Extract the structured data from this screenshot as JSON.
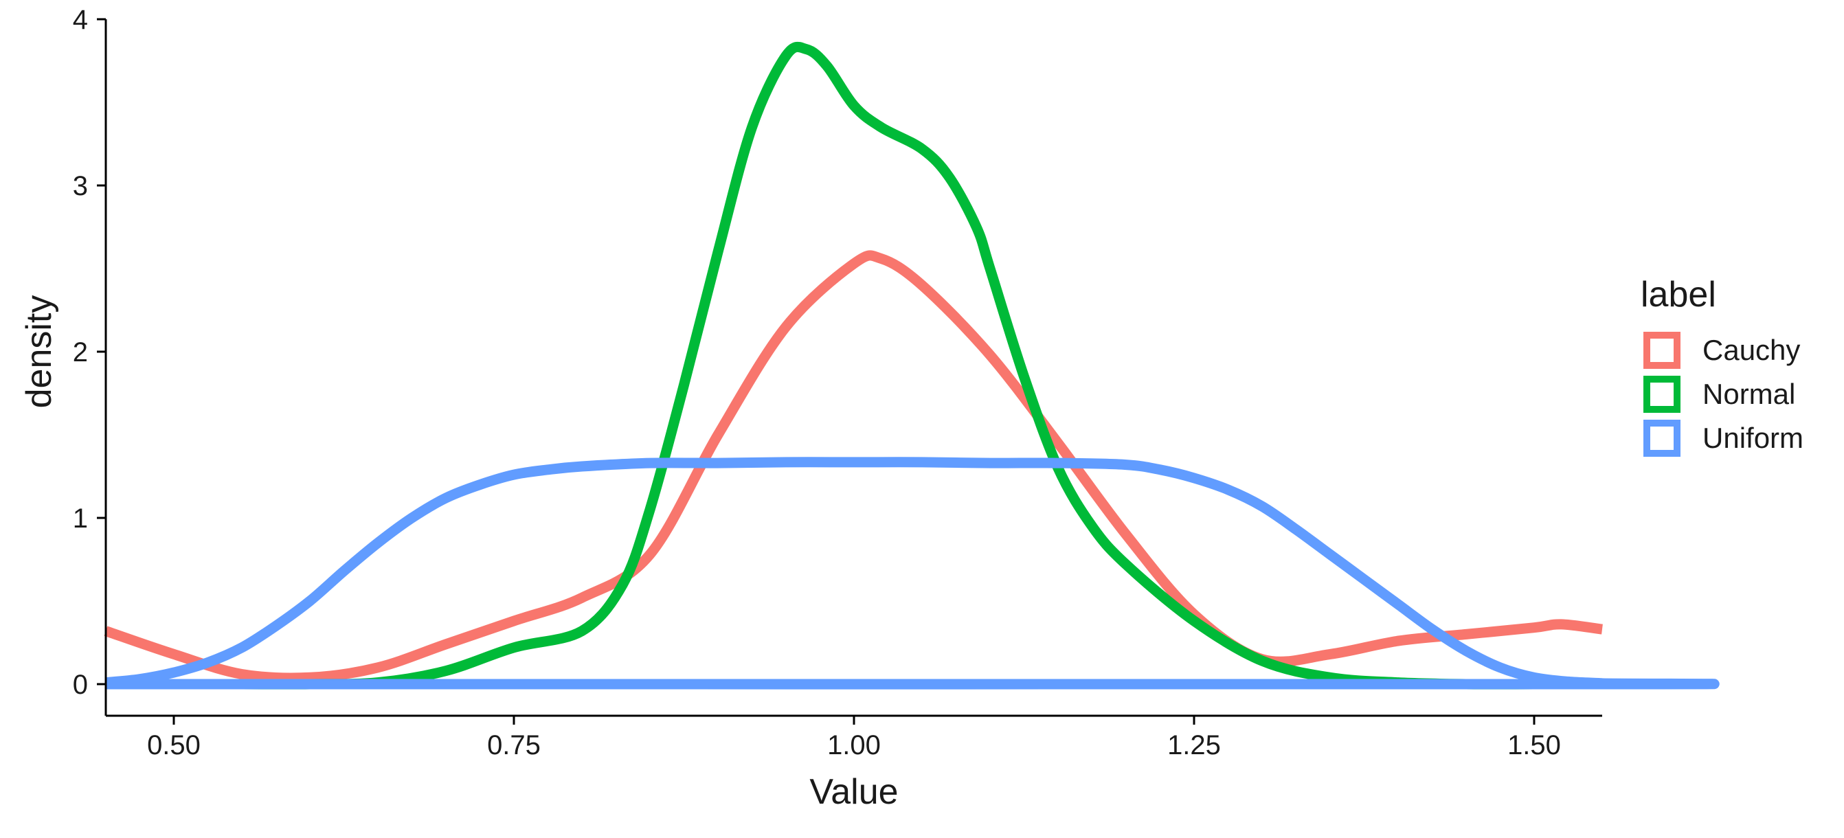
{
  "chart_data": {
    "type": "line",
    "title": "",
    "xlabel": "Value",
    "ylabel": "density",
    "xlim": [
      0.45,
      1.55
    ],
    "ylim": [
      0,
      4
    ],
    "x_ticks": [
      0.5,
      0.75,
      1.0,
      1.25,
      1.5
    ],
    "x_tick_labels": [
      "0.50",
      "0.75",
      "1.00",
      "1.25",
      "1.50"
    ],
    "y_ticks": [
      0,
      1,
      2,
      3,
      4
    ],
    "y_tick_labels": [
      "0",
      "1",
      "2",
      "3",
      "4"
    ],
    "grid": false,
    "legend": {
      "title": "label",
      "position": "right"
    },
    "series": [
      {
        "name": "Cauchy",
        "color": "#F8766D",
        "x": [
          0.45,
          0.5,
          0.55,
          0.6,
          0.65,
          0.7,
          0.75,
          0.8,
          0.85,
          0.9,
          0.95,
          1.0,
          1.02,
          1.05,
          1.1,
          1.15,
          1.2,
          1.25,
          1.3,
          1.35,
          1.4,
          1.45,
          1.5,
          1.52,
          1.55
        ],
        "y": [
          0.32,
          0.18,
          0.06,
          0.04,
          0.1,
          0.24,
          0.38,
          0.52,
          0.78,
          1.5,
          2.15,
          2.53,
          2.56,
          2.4,
          1.98,
          1.45,
          0.9,
          0.42,
          0.15,
          0.18,
          0.26,
          0.3,
          0.34,
          0.36,
          0.33
        ]
      },
      {
        "name": "Normal",
        "color": "#00BA38",
        "x": [
          0.45,
          0.5,
          0.55,
          0.6,
          0.65,
          0.7,
          0.75,
          0.8,
          0.83,
          0.85,
          0.875,
          0.9,
          0.925,
          0.95,
          0.965,
          0.98,
          1.0,
          1.02,
          1.05,
          1.07,
          1.09,
          1.1,
          1.125,
          1.15,
          1.175,
          1.2,
          1.25,
          1.3,
          1.35,
          1.4,
          1.45,
          1.5,
          1.55
        ],
        "y": [
          0,
          0,
          0,
          0,
          0.01,
          0.08,
          0.22,
          0.32,
          0.6,
          1.05,
          1.8,
          2.6,
          3.35,
          3.78,
          3.82,
          3.72,
          3.48,
          3.35,
          3.22,
          3.05,
          2.75,
          2.5,
          1.85,
          1.3,
          0.95,
          0.72,
          0.38,
          0.14,
          0.04,
          0.01,
          0,
          0,
          0
        ]
      },
      {
        "name": "Uniform",
        "color": "#619CFF",
        "x": [
          0.45,
          0.475,
          0.5,
          0.525,
          0.55,
          0.575,
          0.6,
          0.625,
          0.65,
          0.675,
          0.7,
          0.725,
          0.75,
          0.775,
          0.8,
          0.85,
          0.9,
          0.95,
          1.0,
          1.05,
          1.1,
          1.15,
          1.2,
          1.225,
          1.25,
          1.275,
          1.3,
          1.325,
          1.35,
          1.375,
          1.4,
          1.425,
          1.45,
          1.475,
          1.5,
          1.525,
          1.55,
          1.55,
          0.45
        ],
        "y": [
          0.01,
          0.03,
          0.07,
          0.13,
          0.22,
          0.35,
          0.5,
          0.68,
          0.85,
          1.0,
          1.12,
          1.2,
          1.26,
          1.29,
          1.31,
          1.33,
          1.33,
          1.335,
          1.335,
          1.335,
          1.33,
          1.33,
          1.32,
          1.29,
          1.24,
          1.17,
          1.07,
          0.93,
          0.78,
          0.63,
          0.48,
          0.33,
          0.2,
          0.1,
          0.04,
          0.015,
          0.005,
          0,
          0
        ]
      }
    ]
  }
}
